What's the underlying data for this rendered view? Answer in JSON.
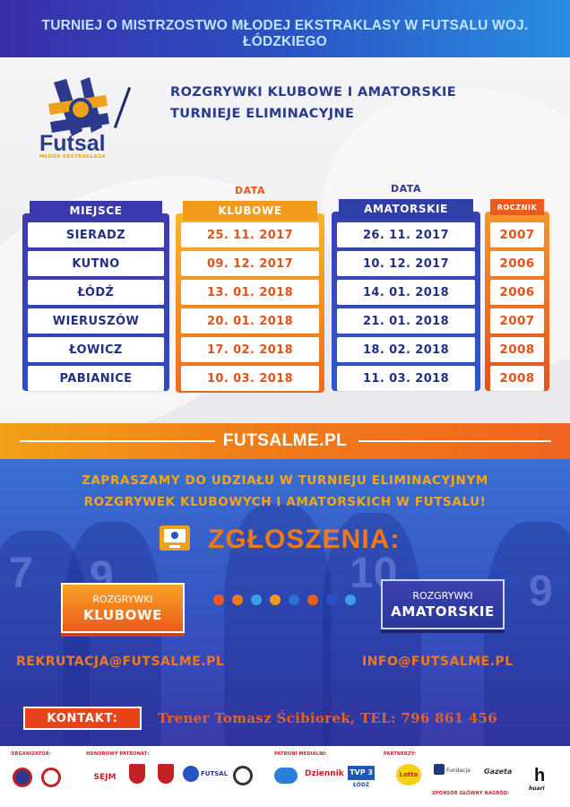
{
  "banner": {
    "title": "TURNIEJ O MISTRZOSTWO MŁODEJ EKSTRAKLASY W FUTSALU WOJ. ŁÓDZKIEGO"
  },
  "logo": {
    "name": "Futsal",
    "tagline": "MŁODA EKSTRAKLASA"
  },
  "headline": {
    "line1": "ROZGRYWKI KLUBOWE I AMATORSKIE",
    "line2": "TURNIEJE ELIMINACYJNE"
  },
  "table": {
    "place_header": "MIEJSCE",
    "club_top": "DATA",
    "club_header": "KLUBOWE",
    "amat_top": "DATA",
    "amat_header": "AMATORSKIE",
    "year_header": "ROCZNIK",
    "places": [
      "SIERADZ",
      "KUTNO",
      "ŁÓDŹ",
      "WIERUSZÓW",
      "ŁOWICZ",
      "PABIANICE"
    ],
    "club_dates": [
      "25. 11. 2017",
      "09. 12. 2017",
      "13. 01. 2018",
      "20. 01. 2018",
      "17. 02. 2018",
      "10. 03. 2018"
    ],
    "amat_dates": [
      "26. 11. 2017",
      "10. 12. 2017",
      "14. 01. 2018",
      "21. 01. 2018",
      "18. 02. 2018",
      "11. 03. 2018"
    ],
    "years": [
      "2007",
      "2006",
      "2006",
      "2007",
      "2008",
      "2008"
    ]
  },
  "url": "FUTSALME.PL",
  "invite": {
    "line1": "ZAPRASZAMY DO UDZIAŁU W TURNIEJU ELIMINACYJNYM",
    "line2": "ROZGRYWEK KLUBOWYCH I AMATORSKICH W FUTSALU!"
  },
  "registration": {
    "title": "ZGŁOSZENIA:",
    "icon": "monitor-ball-icon"
  },
  "buttons": {
    "club": {
      "line1": "ROZGRYWKI",
      "line2": "KLUBOWE"
    },
    "amat": {
      "line1": "ROZGRYWKI",
      "line2": "AMATORSKIE"
    }
  },
  "emails": {
    "club": "REKRUTACJA@FUTSALME.PL",
    "amat": "INFO@FUTSALME.PL"
  },
  "contact": {
    "label": "KONTAKT:",
    "text": "Trener Tomasz Ścibiorek, TEL: 796 861 456"
  },
  "sponsors": {
    "organizer_label": "ORGANIZATOR:",
    "patron_label": "HONOROWY PATRONAT:",
    "media_label": "PATRONI MEDIALNI:",
    "partners_label": "PARTNERZY:",
    "main_sponsor_label": "SPONSOR GŁÓWNY NAGRÓD:",
    "patron_sejm": "SEJM",
    "media_dziennik": "Dziennik",
    "media_tvp": "TVP 3",
    "media_tvp_city": "ŁÓDŹ",
    "partner_lotto": "Lotto",
    "partner_fundacja": "Fundacja",
    "partner_gazeta": "Gazeta",
    "main_sponsor": "huari",
    "patron_futsal": "FUTSAL"
  },
  "colors": {
    "blue": "#2b3a8c",
    "orange": "#f07a1a",
    "red": "#e8441c",
    "yellow": "#f2a018"
  }
}
